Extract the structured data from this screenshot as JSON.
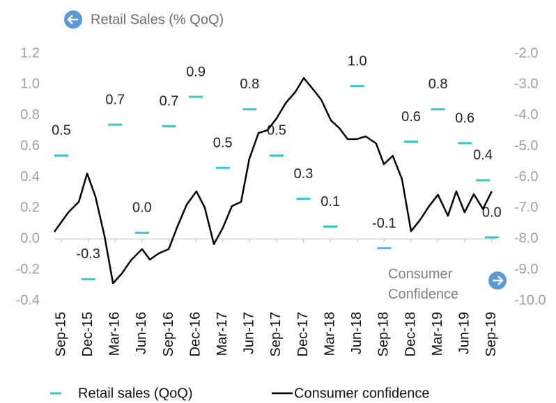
{
  "chart_data": {
    "type": "dash-line",
    "y_label": "Retail Sales (% QoQ)",
    "y2_label": "Consumer Confidence",
    "xlim": [
      -0.26,
      16.16
    ],
    "xticks": [
      {
        "value": 0,
        "label": "Sep-15"
      },
      {
        "value": 1,
        "label": "Dec-15"
      },
      {
        "value": 2,
        "label": "Mar-16"
      },
      {
        "value": 3,
        "label": "Jun-16"
      },
      {
        "value": 4,
        "label": "Sep-16"
      },
      {
        "value": 5,
        "label": "Dec-16"
      },
      {
        "value": 6,
        "label": "Mar-17"
      },
      {
        "value": 7,
        "label": "Jun-17"
      },
      {
        "value": 8,
        "label": "Sep-17"
      },
      {
        "value": 9,
        "label": "Dec-17"
      },
      {
        "value": 10,
        "label": "Mar-18"
      },
      {
        "value": 11,
        "label": "Jun-18"
      },
      {
        "value": 12,
        "label": "Sep-18"
      },
      {
        "value": 13,
        "label": "Dec-18"
      },
      {
        "value": 14,
        "label": "Mar-19"
      },
      {
        "value": 15,
        "label": "Jun-19"
      },
      {
        "value": 16,
        "label": "Sep-19"
      }
    ],
    "ylim": [
      -0.4,
      1.2
    ],
    "yticks": [
      {
        "value": -0.4,
        "label": "-0.4"
      },
      {
        "value": -0.2,
        "label": "-0.2"
      },
      {
        "value": 0,
        "label": "0.0"
      },
      {
        "value": 0.2,
        "label": "0.2"
      },
      {
        "value": 0.4,
        "label": "0.4"
      },
      {
        "value": 0.6,
        "label": "0.6"
      },
      {
        "value": 0.8,
        "label": "0.8"
      },
      {
        "value": 1.0,
        "label": "1.0"
      },
      {
        "value": 1.2,
        "label": "1.2"
      }
    ],
    "y2lim": [
      -10,
      -2
    ],
    "y2ticks": [
      {
        "value": -10,
        "label": "-10.0"
      },
      {
        "value": -9,
        "label": "-9.0"
      },
      {
        "value": -8,
        "label": "-8.0"
      },
      {
        "value": -7,
        "label": "-7.0"
      },
      {
        "value": -6,
        "label": "-6.0"
      },
      {
        "value": -5,
        "label": "-5.0"
      },
      {
        "value": -4,
        "label": "-4.0"
      },
      {
        "value": -3,
        "label": "-3.0"
      },
      {
        "value": -2,
        "label": "-2.0"
      }
    ],
    "series": [
      {
        "name": "Retail sales (QoQ)",
        "color": "#3ec6c6",
        "style": "dash",
        "x": [
          0,
          1,
          2,
          3,
          4,
          5,
          6,
          7,
          8,
          9,
          10,
          11,
          12,
          13,
          14,
          15,
          15.67,
          16
        ],
        "values": [
          0.54,
          -0.26,
          0.74,
          0.04,
          0.73,
          0.92,
          0.46,
          0.84,
          0.54,
          0.26,
          0.08,
          0.99,
          -0.06,
          0.63,
          0.84,
          0.62,
          0.38,
          0.01
        ],
        "value_labels": [
          "0.5",
          "-0.3",
          "0.7",
          "0.0",
          "0.7",
          "0.9",
          "0.5",
          "0.8",
          "0.5",
          "0.3",
          "0.1",
          "1.0",
          "-0.1",
          "0.6",
          "0.8",
          "0.6",
          "0.4",
          "0.0"
        ]
      },
      {
        "name": "Consumer confidence",
        "color": "#000000",
        "style": "line",
        "axis": "y2",
        "x": [
          -0.26,
          0.26,
          0.65,
          0.96,
          1.27,
          1.61,
          1.92,
          2.25,
          2.59,
          3.0,
          3.29,
          3.62,
          3.99,
          4.32,
          4.66,
          5.02,
          5.33,
          5.67,
          6.01,
          6.34,
          6.68,
          6.99,
          7.33,
          7.66,
          8.0,
          8.34,
          8.7,
          9.01,
          9.35,
          9.66,
          10.02,
          10.33,
          10.64,
          10.98,
          11.31,
          11.7,
          11.99,
          12.32,
          12.66,
          13.0,
          13.33,
          13.67,
          14.0,
          14.37,
          14.68,
          14.99,
          15.33,
          15.67,
          16.0
        ],
        "values": [
          -7.77,
          -7.14,
          -6.8,
          -5.88,
          -6.64,
          -7.93,
          -9.44,
          -9.12,
          -8.69,
          -8.33,
          -8.67,
          -8.47,
          -8.33,
          -7.59,
          -6.89,
          -6.46,
          -6.98,
          -8.17,
          -7.63,
          -6.94,
          -6.8,
          -5.4,
          -4.57,
          -4.48,
          -4.1,
          -3.6,
          -3.24,
          -2.79,
          -3.15,
          -3.49,
          -4.16,
          -4.41,
          -4.77,
          -4.77,
          -4.68,
          -4.91,
          -5.58,
          -5.31,
          -6.06,
          -7.75,
          -7.39,
          -6.94,
          -6.57,
          -7.25,
          -6.46,
          -7.14,
          -6.55,
          -7.03,
          -6.46
        ]
      }
    ]
  }
}
